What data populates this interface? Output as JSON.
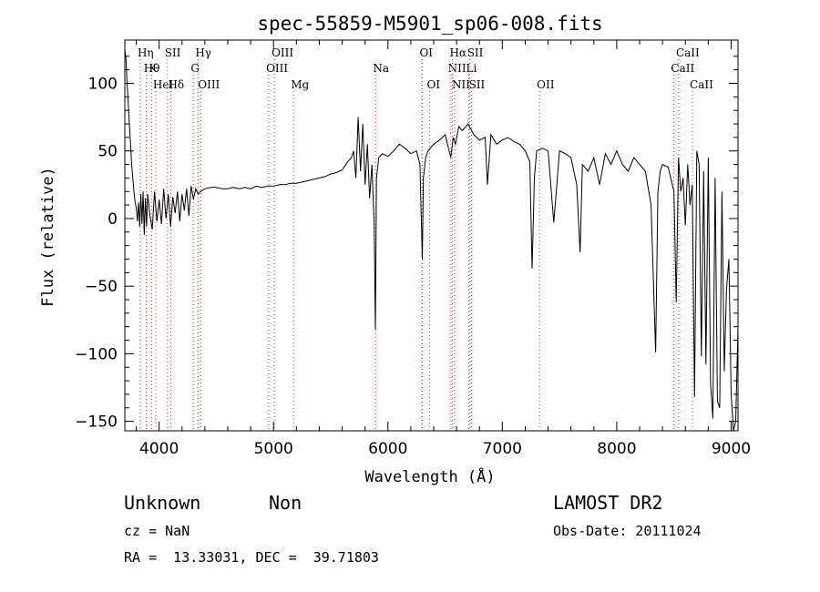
{
  "chart_data": {
    "type": "line",
    "title": "spec-55859-M5901_sp06-008.fits",
    "xlabel": "Wavelength (Å)",
    "ylabel": "Flux (relative)",
    "xlim": [
      3700,
      9060
    ],
    "ylim": [
      -157,
      132
    ],
    "xticks": [
      4000,
      5000,
      6000,
      7000,
      8000,
      9000
    ],
    "yticks": [
      -150,
      -100,
      -50,
      0,
      50,
      100
    ],
    "grid": false,
    "series": [
      {
        "x": [
          3700,
          3710,
          3720,
          3730,
          3740,
          3750,
          3760,
          3770,
          3780,
          3790,
          3800,
          3810,
          3820,
          3830,
          3840,
          3850,
          3860,
          3870,
          3880,
          3890,
          3900,
          3920,
          3940,
          3960,
          3980,
          4000,
          4020,
          4040,
          4060,
          4080,
          4100,
          4120,
          4140,
          4160,
          4180,
          4200,
          4220,
          4240,
          4260,
          4280,
          4300,
          4320,
          4340,
          4360,
          4380,
          4400,
          4450,
          4500,
          4550,
          4600,
          4650,
          4700,
          4750,
          4800,
          4850,
          4900,
          4950,
          5000,
          5050,
          5100,
          5150,
          5200,
          5250,
          5300,
          5350,
          5400,
          5450,
          5500,
          5550,
          5600,
          5650,
          5680,
          5700,
          5720,
          5740,
          5760,
          5780,
          5800,
          5820,
          5840,
          5860,
          5880,
          5890,
          5900,
          5920,
          5950,
          6000,
          6050,
          6100,
          6150,
          6200,
          6250,
          6280,
          6300,
          6310,
          6330,
          6350,
          6400,
          6450,
          6500,
          6550,
          6570,
          6590,
          6620,
          6650,
          6700,
          6750,
          6800,
          6850,
          6870,
          6900,
          6950,
          7000,
          7050,
          7100,
          7150,
          7200,
          7240,
          7260,
          7280,
          7300,
          7350,
          7400,
          7450,
          7500,
          7550,
          7600,
          7650,
          7680,
          7700,
          7750,
          7800,
          7850,
          7900,
          7950,
          8000,
          8050,
          8100,
          8150,
          8200,
          8250,
          8300,
          8340,
          8360,
          8380,
          8400,
          8450,
          8500,
          8520,
          8540,
          8560,
          8580,
          8600,
          8620,
          8640,
          8660,
          8680,
          8700,
          8720,
          8740,
          8760,
          8780,
          8800,
          8820,
          8840,
          8860,
          8880,
          8900,
          8920,
          8940,
          8960,
          8980,
          9000,
          9020,
          9040,
          9060
        ],
        "values": [
          125,
          118,
          100,
          85,
          70,
          55,
          40,
          30,
          20,
          12,
          8,
          -2,
          12,
          -6,
          18,
          -4,
          20,
          -12,
          15,
          -6,
          18,
          2,
          -8,
          20,
          -2,
          14,
          -4,
          22,
          0,
          18,
          -6,
          16,
          4,
          20,
          -2,
          18,
          6,
          22,
          2,
          24,
          14,
          22,
          18,
          20,
          21,
          22,
          23,
          23,
          22,
          22,
          23,
          22,
          23,
          22,
          24,
          23,
          24,
          24,
          25,
          25,
          26,
          26,
          27,
          28,
          29,
          30,
          31,
          33,
          34,
          36,
          42,
          45,
          50,
          30,
          75,
          35,
          70,
          25,
          55,
          15,
          40,
          -5,
          -82,
          30,
          45,
          48,
          46,
          50,
          55,
          52,
          48,
          50,
          40,
          -30,
          30,
          45,
          50,
          55,
          58,
          62,
          45,
          60,
          55,
          68,
          65,
          70,
          62,
          58,
          60,
          25,
          62,
          55,
          58,
          60,
          57,
          55,
          50,
          42,
          -37,
          30,
          50,
          52,
          50,
          -3,
          50,
          48,
          45,
          25,
          -25,
          40,
          35,
          45,
          25,
          48,
          40,
          50,
          40,
          35,
          45,
          40,
          35,
          10,
          -99,
          20,
          35,
          40,
          38,
          20,
          -62,
          45,
          20,
          30,
          -5,
          40,
          10,
          25,
          -132,
          50,
          40,
          -102,
          35,
          -108,
          45,
          -122,
          -148,
          30,
          -135,
          -140,
          20,
          -113,
          -52,
          -30,
          -130,
          -158,
          -150,
          -80
        ]
      }
    ],
    "line_ids": [
      {
        "x": 3835,
        "row": 0,
        "label": "Hη"
      },
      {
        "x": 3889,
        "row": 1,
        "label": "Hθ"
      },
      {
        "x": 3934,
        "row": 1,
        "label": "K"
      },
      {
        "x": 3970,
        "row": 2,
        "label": "HeI"
      },
      {
        "x": 4072,
        "row": 0,
        "label": "SII"
      },
      {
        "x": 4102,
        "row": 2,
        "label": "Hδ"
      },
      {
        "x": 4300,
        "row": 1,
        "label": "G"
      },
      {
        "x": 4340,
        "row": 0,
        "label": "Hγ"
      },
      {
        "x": 4363,
        "row": 2,
        "label": "OIII"
      },
      {
        "x": 4959,
        "row": 1,
        "label": "OIII"
      },
      {
        "x": 5007,
        "row": 0,
        "label": "OIII"
      },
      {
        "x": 5175,
        "row": 2,
        "label": "Mg"
      },
      {
        "x": 5893,
        "row": 1,
        "label": "Na"
      },
      {
        "x": 6300,
        "row": 0,
        "label": "OI"
      },
      {
        "x": 6364,
        "row": 2,
        "label": "OI"
      },
      {
        "x": 6548,
        "row": 1,
        "label": "NII"
      },
      {
        "x": 6563,
        "row": 0,
        "label": "Hα"
      },
      {
        "x": 6583,
        "row": 2,
        "label": "NII"
      },
      {
        "x": 6707,
        "row": 1,
        "label": "Li"
      },
      {
        "x": 6716,
        "row": 0,
        "label": "SII"
      },
      {
        "x": 6731,
        "row": 2,
        "label": "SII"
      },
      {
        "x": 7325,
        "row": 2,
        "label": "OII"
      },
      {
        "x": 8498,
        "row": 1,
        "label": "CaII"
      },
      {
        "x": 8542,
        "row": 0,
        "label": "CaII"
      },
      {
        "x": 8662,
        "row": 2,
        "label": "CaII"
      }
    ]
  },
  "info": {
    "classification": "Unknown",
    "subclass": "Non",
    "survey": "LAMOST DR2",
    "cz": "cz = NaN",
    "obs_date": "Obs-Date: 20111024",
    "coords": "RA =  13.33031, DEC =  39.71803"
  }
}
